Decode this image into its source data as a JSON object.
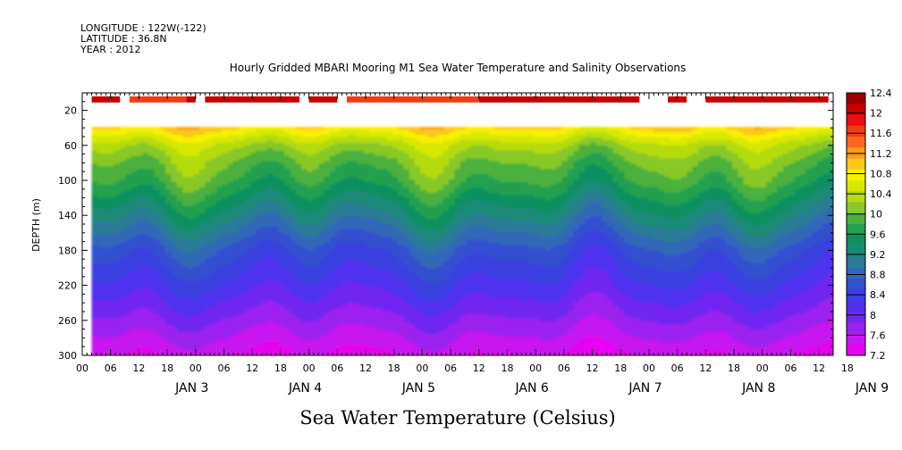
{
  "header": {
    "line1": "LONGITUDE : 122W(-122)",
    "line2": "LATITUDE : 36.8N",
    "line3": "YEAR : 2012"
  },
  "chart_data": {
    "type": "heatmap",
    "title": "Hourly Gridded MBARI Mooring M1 Sea Water Temperature and Salinity Observations",
    "xlabel": "Sea Water Temperature (Celsius)",
    "ylabel": "DEPTH (m)",
    "y_axis": {
      "range": [
        0,
        300
      ],
      "inverted": true,
      "tick_labels": [
        "20",
        "60",
        "100",
        "140",
        "180",
        "220",
        "260",
        "300"
      ],
      "ticks": [
        20,
        60,
        100,
        140,
        180,
        220,
        260,
        300
      ]
    },
    "x_axis": {
      "range_hours": [
        -18,
        141
      ],
      "hour_labels": [
        "00",
        "06",
        "12",
        "18",
        "00",
        "06",
        "12",
        "18",
        "00",
        "06",
        "12",
        "18",
        "00",
        "06",
        "12",
        "18",
        "00",
        "06",
        "12",
        "18",
        "00",
        "06",
        "12",
        "18",
        "00",
        "06",
        "12",
        "18"
      ],
      "day_labels": [
        "JAN 3",
        "JAN 4",
        "JAN 5",
        "JAN 6",
        "JAN 7",
        "JAN 8",
        "JAN 9"
      ]
    },
    "colorbar": {
      "labels": [
        "12.4",
        "12",
        "11.6",
        "11.2",
        "10.8",
        "10.4",
        "10",
        "9.6",
        "9.2",
        "8.8",
        "8.4",
        "8",
        "7.6",
        "7.2"
      ],
      "values": [
        12.4,
        12,
        11.6,
        11.2,
        10.8,
        10.4,
        10,
        9.6,
        9.2,
        8.8,
        8.4,
        8,
        7.6,
        7.2
      ],
      "band_colors": [
        "#9c0000",
        "#c80000",
        "#e81010",
        "#f23c14",
        "#f86818",
        "#fc9a1c",
        "#fcc818",
        "#f8f000",
        "#d8e800",
        "#b4dc10",
        "#88c828",
        "#4cb03c",
        "#20a050",
        "#109060",
        "#1a8a78",
        "#2a7a98",
        "#3068b8",
        "#3050d0",
        "#3a40e0",
        "#5030f0",
        "#7028f0",
        "#9c20f0",
        "#c818f0",
        "#e800f0"
      ]
    },
    "depth_profile": {
      "depths": [
        10,
        40,
        60,
        80,
        100,
        120,
        140,
        160,
        180,
        200,
        220,
        240,
        260,
        280,
        300
      ],
      "temperatures": [
        12.0,
        10.9,
        10.3,
        10.0,
        9.8,
        9.5,
        9.2,
        8.9,
        8.6,
        8.4,
        8.2,
        8.0,
        7.8,
        7.6,
        7.4
      ]
    },
    "surface_bar": {
      "depth_range": [
        4,
        11
      ],
      "segments_hours": [
        [
          -16,
          -12
        ],
        [
          -12,
          -10
        ],
        [
          -8,
          4
        ],
        [
          4,
          6
        ],
        [
          8,
          28
        ],
        [
          30,
          36
        ],
        [
          38,
          60
        ],
        [
          60,
          66
        ],
        [
          66,
          100
        ],
        [
          106,
          110
        ],
        [
          114,
          140
        ],
        [
          148,
          166
        ],
        [
          168,
          170
        ],
        [
          173,
          190
        ]
      ]
    },
    "missing_data_depth_range": [
      11,
      39
    ]
  }
}
